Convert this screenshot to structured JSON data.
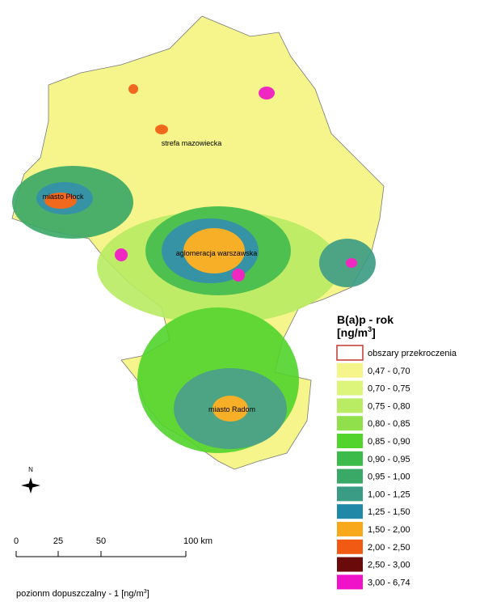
{
  "map": {
    "region_labels": [
      "strefa mazowiecka",
      "miasto Płock",
      "aglomeracja warszawska",
      "miasto Radom"
    ],
    "legend": {
      "title": "B(a)p - rok",
      "unit_prefix": "[ng/m",
      "unit_sup": "3",
      "unit_suffix": "]",
      "items": [
        {
          "label": "obszary przekroczenia",
          "color": "#ffffff",
          "border": "#c0392b"
        },
        {
          "label": "0,47 - 0,70",
          "color": "#f5f58c"
        },
        {
          "label": "0,70 - 0,75",
          "color": "#dcf57a"
        },
        {
          "label": "0,75 - 0,80",
          "color": "#b9ec63"
        },
        {
          "label": "0,80 - 0,85",
          "color": "#8fe04a"
        },
        {
          "label": "0,85 - 0,90",
          "color": "#52d42c"
        },
        {
          "label": "0,90 - 0,95",
          "color": "#3dbb4a"
        },
        {
          "label": "0,95 - 1,00",
          "color": "#3aa866"
        },
        {
          "label": "1,00 - 1,25",
          "color": "#3a9c84"
        },
        {
          "label": "1,25 - 1,50",
          "color": "#2288a8"
        },
        {
          "label": "1,50 - 2,00",
          "color": "#f7a81b"
        },
        {
          "label": "2,00 - 2,50",
          "color": "#f05a12"
        },
        {
          "label": "2,50 - 3,00",
          "color": "#6b0a0a"
        },
        {
          "label": "3,00 - 6,74",
          "color": "#f012c8"
        }
      ]
    },
    "compass": "N",
    "scale_labels": [
      "0",
      "25",
      "50",
      "100 km"
    ],
    "footnote": {
      "text": "pozionm dopuszczalny - 1 [ng/m",
      "sup": "3",
      "suffix": "]"
    }
  }
}
